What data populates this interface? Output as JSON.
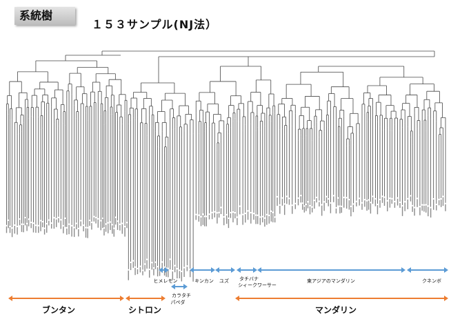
{
  "header": {
    "label": "系統樹"
  },
  "title": "１５３サンプル(NJ法）",
  "clades": {
    "himelemon": "ヒメレモン",
    "kinkan": "キンカン",
    "yuzu": "ユズ",
    "tachibana": "タチバナ",
    "shikwasa": "シィークワーサー",
    "east_asia_mandarin": "東アジアのマンダリン",
    "kunenbo": "クネンボ",
    "karatachi": "カラタチ",
    "papeda": "パペダ"
  },
  "groups": {
    "buntan": "ブンタン",
    "citron": "シトロン",
    "mandarin": "マンダリン"
  },
  "colors": {
    "tree": "#444444",
    "blue_arrow": "#5b9bd5",
    "orange_arrow": "#ed7d31"
  }
}
